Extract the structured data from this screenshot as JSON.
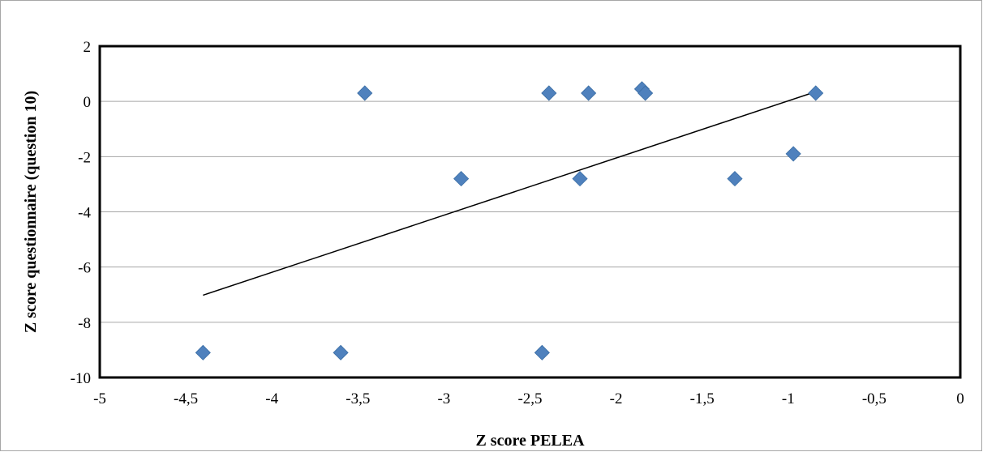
{
  "chart_data": {
    "type": "scatter",
    "xlabel": "Z score PELEA",
    "ylabel": "Z score questionnaire (question 10)",
    "xlim": [
      -5,
      0
    ],
    "ylim": [
      -10,
      2
    ],
    "x_ticks": [
      "-5",
      "-4,5",
      "-4",
      "-3,5",
      "-3",
      "-2,5",
      "-2",
      "-1,5",
      "-1",
      "-0,5",
      "0"
    ],
    "x_tick_values": [
      -5,
      -4.5,
      -4,
      -3.5,
      -3,
      -2.5,
      -2,
      -1.5,
      -1,
      -0.5,
      0
    ],
    "y_ticks": [
      "2",
      "0",
      "-2",
      "-4",
      "-6",
      "-8",
      "-10"
    ],
    "y_tick_values": [
      2,
      0,
      -2,
      -4,
      -6,
      -8,
      -10
    ],
    "grid": "horizontal",
    "marker_color": "#4f81bd",
    "series": [
      {
        "points": [
          {
            "x": -4.4,
            "y": -9.1
          },
          {
            "x": -3.6,
            "y": -9.1
          },
          {
            "x": -3.46,
            "y": 0.3
          },
          {
            "x": -2.9,
            "y": -2.8
          },
          {
            "x": -2.43,
            "y": -9.1
          },
          {
            "x": -2.39,
            "y": 0.3
          },
          {
            "x": -2.21,
            "y": -2.8
          },
          {
            "x": -2.16,
            "y": 0.3
          },
          {
            "x": -1.85,
            "y": 0.45
          },
          {
            "x": -1.83,
            "y": 0.3
          },
          {
            "x": -1.31,
            "y": -2.8
          },
          {
            "x": -0.97,
            "y": -1.9
          },
          {
            "x": -0.84,
            "y": 0.3
          }
        ]
      }
    ],
    "trendline": {
      "x": [
        -4.4,
        -0.84
      ],
      "y": [
        -7.02,
        0.35
      ],
      "color": "#000000"
    }
  }
}
